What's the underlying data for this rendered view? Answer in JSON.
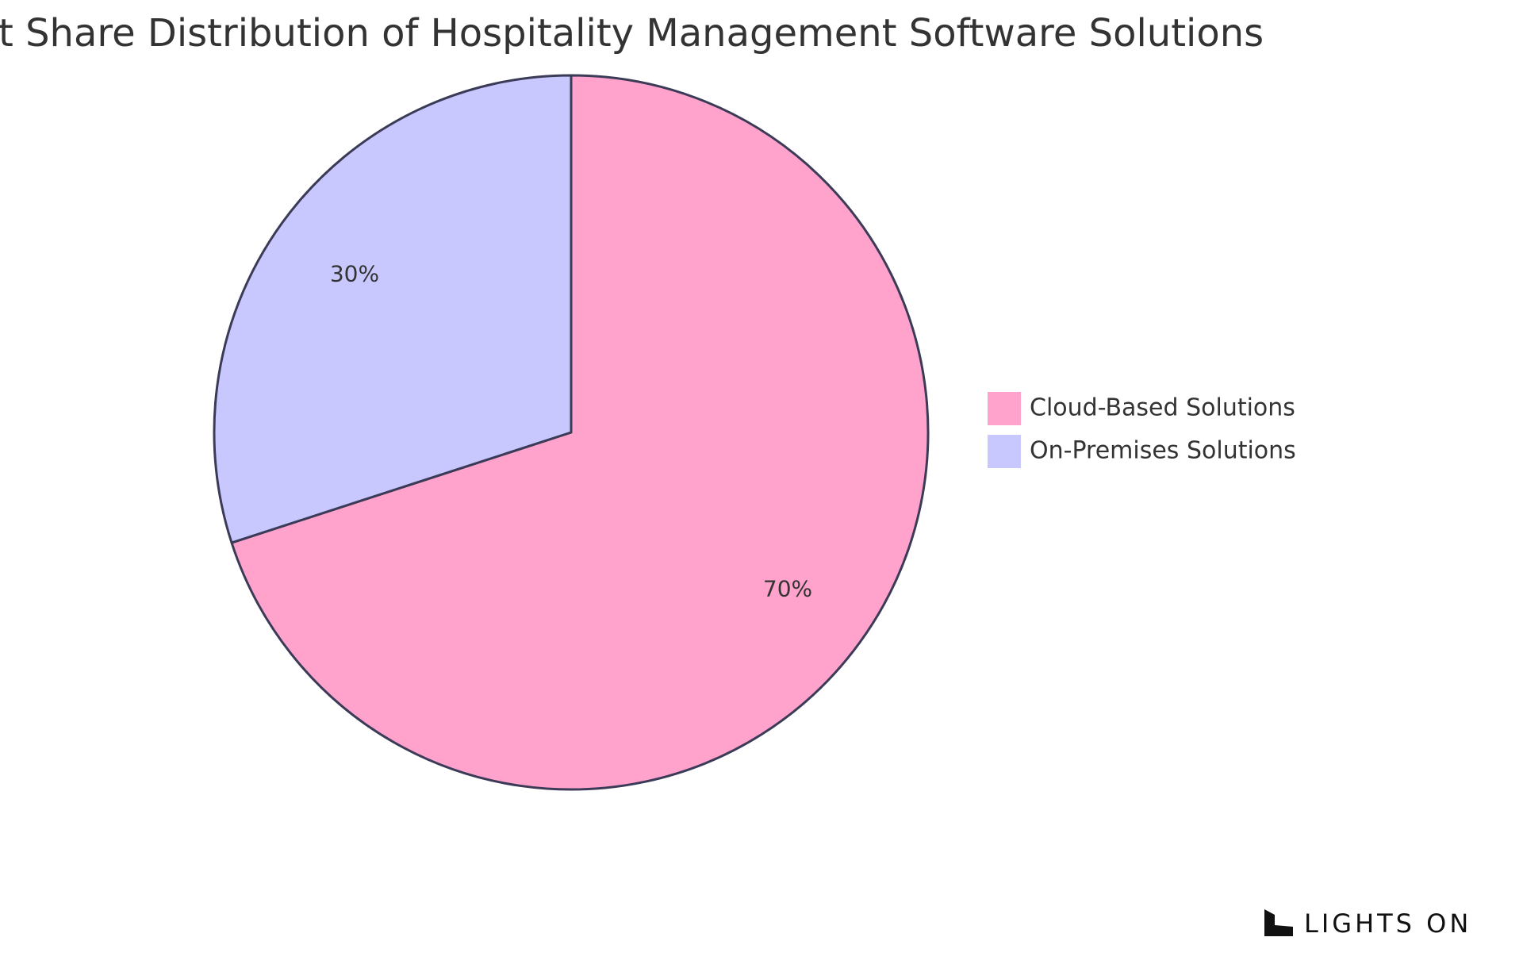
{
  "chart_data": {
    "type": "pie",
    "title": "t Share Distribution of Hospitality Management Software Solutions",
    "slices": [
      {
        "label": "Cloud-Based Solutions",
        "value": 70,
        "display": "70%",
        "color": "#ffa3cc"
      },
      {
        "label": "On-Premises Solutions",
        "value": 30,
        "display": "30%",
        "color": "#c8c8ff"
      }
    ],
    "start": "top",
    "direction": "clockwise",
    "legend_position": "right",
    "border_color": "#3b3b58"
  },
  "brand": {
    "name": "LIGHTS ON",
    "icon": "lights-on-logo-icon"
  }
}
